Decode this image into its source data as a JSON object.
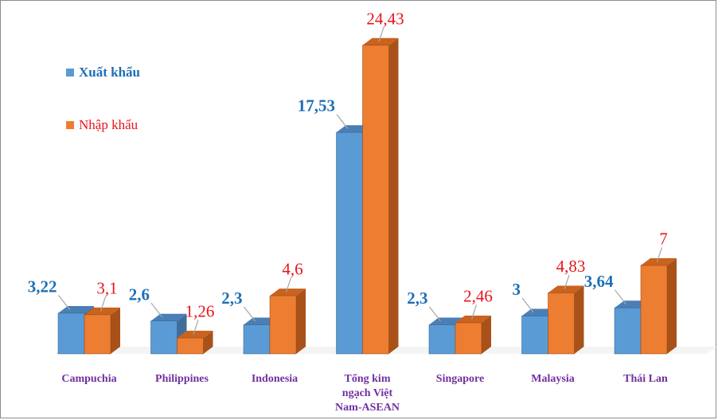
{
  "chart_data": {
    "type": "bar",
    "categories": [
      [
        "Campuchia"
      ],
      [
        "Philippines"
      ],
      [
        "Indonesia"
      ],
      [
        "Tổng kim",
        "ngạch Việt",
        "Nam-ASEAN"
      ],
      [
        "Singapore"
      ],
      [
        "Malaysia"
      ],
      [
        "Thái Lan"
      ]
    ],
    "series": [
      {
        "name": "Xuất khẩu",
        "values": [
          3.22,
          2.6,
          2.3,
          17.53,
          2.3,
          3,
          3.64
        ],
        "labels": [
          "3,22",
          "2,6",
          "2,3",
          "17,53",
          "2,3",
          "3",
          "3,64"
        ],
        "color": "#5b9bd5",
        "label_color": "#1f6fb5"
      },
      {
        "name": "Nhập khẩu",
        "values": [
          3.1,
          1.26,
          4.6,
          24.43,
          2.46,
          4.83,
          7
        ],
        "labels": [
          "3,1",
          "1,26",
          "4,6",
          "24,43",
          "2,46",
          "4,83",
          "7"
        ],
        "color": "#ed7d31",
        "label_color": "#e8141b"
      }
    ],
    "title": "",
    "xlabel": "",
    "ylabel": "",
    "grid": false,
    "legend_position": "top-left",
    "style": "3d-clustered-column"
  }
}
